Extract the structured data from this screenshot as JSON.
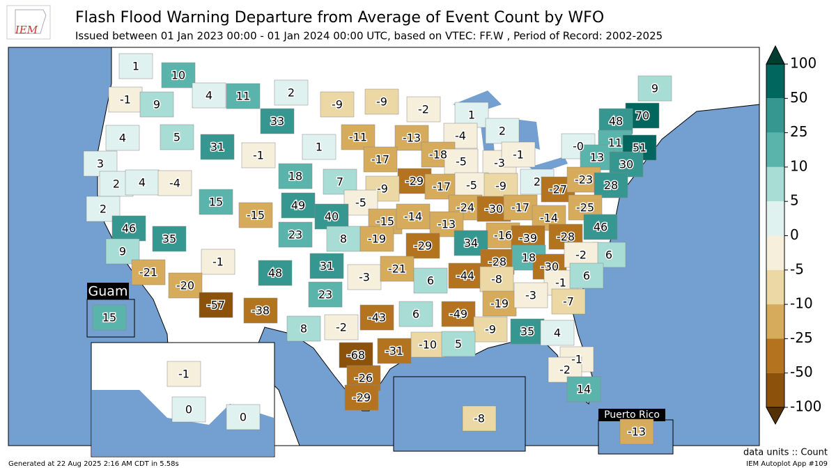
{
  "header": {
    "title": "Flash Flood Warning Departure from Average of Event Count by WFO",
    "subtitle": "Issued between 01 Jan 2023 00:00 - 01 Jan 2024 00:00 UTC, based on VTEC: FF.W  , Period of Record: 2002-2025"
  },
  "logo": {
    "text": "IEM"
  },
  "map": {
    "ocean_color": "#739fd1",
    "land_color": "#ffffff",
    "labels": [
      "1",
      "10",
      "-1",
      "9",
      "4",
      "11",
      "2",
      "-9",
      "-9",
      "-2",
      "9",
      "1",
      "70",
      "48",
      "4",
      "5",
      "33",
      "31",
      "-11",
      "-13",
      "-4",
      "2",
      "1",
      "-1",
      "-18",
      "-17",
      "-5",
      "-3",
      "-1",
      "-0",
      "11",
      "51",
      "13",
      "30",
      "3",
      "2",
      "4",
      "-4",
      "18",
      "7",
      "-29",
      "-9",
      "-17",
      "-5",
      "-9",
      "2",
      "-27",
      "-23",
      "28",
      "15",
      "-15",
      "49",
      "-5",
      "40",
      "-15",
      "-14",
      "-24",
      "-30",
      "-17",
      "-14",
      "-25",
      "2",
      "46",
      "35",
      "23",
      "8",
      "-19",
      "-13",
      "-16",
      "-39",
      "-28",
      "46",
      "-29",
      "34",
      "9",
      "6",
      "-1",
      "48",
      "31",
      "-3",
      "-21",
      "-28",
      "18",
      "-30",
      "-2",
      "-21",
      "-20",
      "6",
      "-44",
      "-8",
      "-1",
      "6",
      "23",
      "-57",
      "-38",
      "-19",
      "-3",
      "-7",
      "-43",
      "-49",
      "6",
      "8",
      "-2",
      "-9",
      "35",
      "4",
      "-10",
      "5",
      "-31",
      "-68",
      "-1",
      "-2",
      "-26",
      "14",
      "-29",
      "-1",
      "0",
      "0",
      "-8",
      "15",
      "-13"
    ]
  },
  "insets": {
    "guam": {
      "title": "Guam"
    },
    "puerto_rico": {
      "title": "Puerto Rico"
    }
  },
  "colorbar": {
    "ticks": [
      100,
      50,
      25,
      10,
      5,
      0,
      -5,
      -10,
      -25,
      -50,
      -100
    ],
    "colors": [
      "#01665e",
      "#35978f",
      "#5ab4ac",
      "#a8ddd5",
      "#dff2ef",
      "#f6efdc",
      "#ecd8a4",
      "#d7ab5c",
      "#b4741f",
      "#8c510a"
    ],
    "over_color": "#003c30",
    "under_color": "#543005"
  },
  "footer": {
    "units": "data units :: Count",
    "app": "IEM Autoplot App #109",
    "generated": "Generated at 22 Aug 2025 2:16 AM CDT in 5.58s"
  }
}
